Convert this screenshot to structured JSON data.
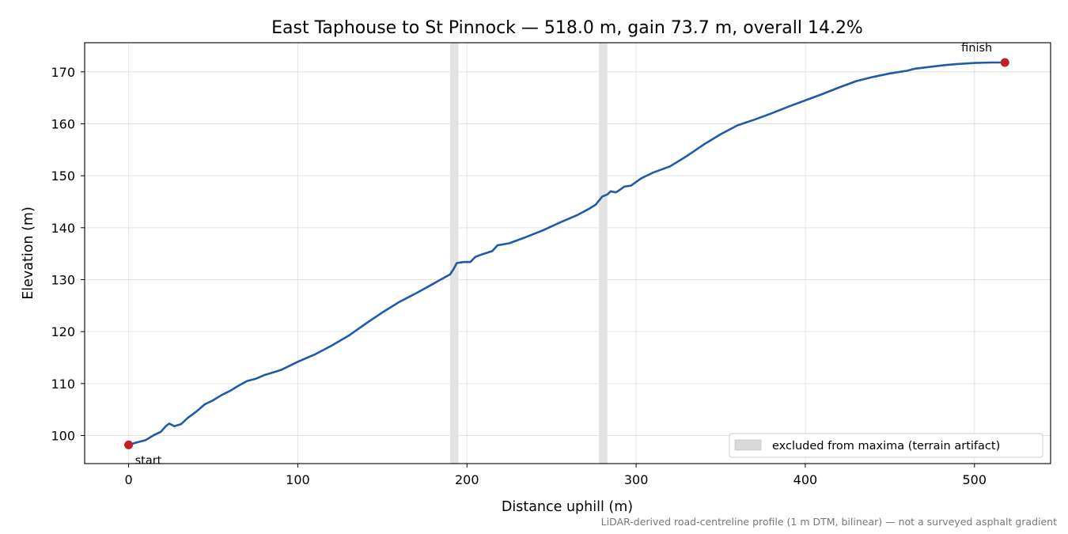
{
  "chart_data": {
    "type": "line",
    "title": "East Taphouse to St Pinnock — 518.0 m, gain 73.7 m, overall 14.2%",
    "xlabel": "Distance uphill (m)",
    "ylabel": "Elevation (m)",
    "xlim": [
      -26,
      545
    ],
    "ylim": [
      94.6,
      175.6
    ],
    "x_ticks": [
      0,
      100,
      200,
      300,
      400,
      500
    ],
    "y_ticks": [
      100,
      110,
      120,
      130,
      140,
      150,
      160,
      170
    ],
    "grid": true,
    "legend_position": "lower-right",
    "legend_label": "excluded from maxima (terrain artifact)",
    "excluded_ranges": [
      [
        190,
        195
      ],
      [
        278,
        283
      ]
    ],
    "series": [
      {
        "color": "#1f5aa8",
        "points": [
          [
            0,
            98.2
          ],
          [
            5,
            98.7
          ],
          [
            10,
            99.1
          ],
          [
            15,
            100.1
          ],
          [
            19,
            100.7
          ],
          [
            22,
            101.8
          ],
          [
            24,
            102.3
          ],
          [
            27,
            101.8
          ],
          [
            31,
            102.2
          ],
          [
            35,
            103.4
          ],
          [
            40,
            104.6
          ],
          [
            45,
            106.0
          ],
          [
            50,
            106.8
          ],
          [
            55,
            107.8
          ],
          [
            60,
            108.6
          ],
          [
            65,
            109.6
          ],
          [
            70,
            110.5
          ],
          [
            75,
            110.9
          ],
          [
            80,
            111.6
          ],
          [
            90,
            112.6
          ],
          [
            100,
            114.2
          ],
          [
            110,
            115.6
          ],
          [
            120,
            117.3
          ],
          [
            130,
            119.2
          ],
          [
            140,
            121.5
          ],
          [
            150,
            123.7
          ],
          [
            160,
            125.7
          ],
          [
            170,
            127.4
          ],
          [
            180,
            129.2
          ],
          [
            185,
            130.1
          ],
          [
            190,
            131.0
          ],
          [
            192,
            132.0
          ],
          [
            194,
            133.2
          ],
          [
            198,
            133.4
          ],
          [
            202,
            133.4
          ],
          [
            205,
            134.4
          ],
          [
            210,
            135.0
          ],
          [
            215,
            135.5
          ],
          [
            218,
            136.6
          ],
          [
            225,
            137.0
          ],
          [
            235,
            138.2
          ],
          [
            245,
            139.5
          ],
          [
            255,
            141.0
          ],
          [
            265,
            142.4
          ],
          [
            272,
            143.6
          ],
          [
            276,
            144.4
          ],
          [
            280,
            146.0
          ],
          [
            283,
            146.4
          ],
          [
            285,
            147.0
          ],
          [
            288,
            146.8
          ],
          [
            290,
            147.2
          ],
          [
            293,
            147.9
          ],
          [
            297,
            148.1
          ],
          [
            303,
            149.5
          ],
          [
            310,
            150.6
          ],
          [
            320,
            151.8
          ],
          [
            330,
            153.8
          ],
          [
            340,
            156.0
          ],
          [
            350,
            158.0
          ],
          [
            360,
            159.7
          ],
          [
            370,
            160.8
          ],
          [
            380,
            162.0
          ],
          [
            390,
            163.3
          ],
          [
            400,
            164.5
          ],
          [
            410,
            165.7
          ],
          [
            420,
            167.0
          ],
          [
            430,
            168.2
          ],
          [
            440,
            169.0
          ],
          [
            450,
            169.7
          ],
          [
            460,
            170.2
          ],
          [
            465,
            170.6
          ],
          [
            475,
            171.0
          ],
          [
            483,
            171.3
          ],
          [
            490,
            171.5
          ],
          [
            500,
            171.7
          ],
          [
            510,
            171.8
          ],
          [
            518,
            171.8
          ]
        ]
      }
    ],
    "markers": [
      {
        "label": "start",
        "x": 0,
        "y": 98.2,
        "color": "#c0202a"
      },
      {
        "label": "finish",
        "x": 518,
        "y": 171.8,
        "color": "#c0202a"
      }
    ],
    "footnote": "LiDAR-derived road-centreline profile (1 m DTM, bilinear) — not a surveyed asphalt gradient"
  }
}
